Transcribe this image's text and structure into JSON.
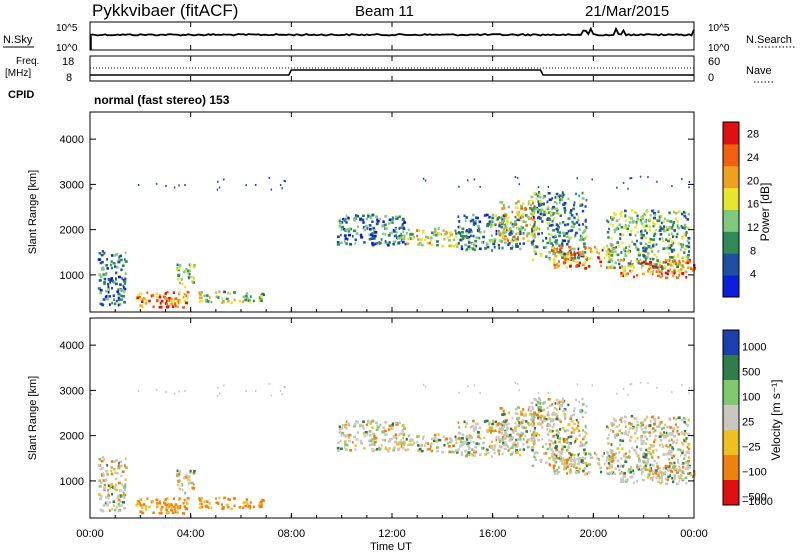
{
  "header": {
    "station": "Pykkvibaer (fitACF)",
    "beam": "Beam 11",
    "date": "21/Mar/2015"
  },
  "noise_panel": {
    "left_label": "N.Sky",
    "left_ticks": [
      "10^5",
      "10^0"
    ],
    "right_label": "N.Search",
    "right_ticks": [
      "10^5",
      "10^0"
    ]
  },
  "freq_panel": {
    "left_label_line1": "Freq.",
    "left_label_line2": "[MHz]",
    "left_ticks": [
      "18",
      "8"
    ],
    "right_label": "Nave",
    "right_ticks": [
      "60",
      "0"
    ],
    "cpid_label": "CPID",
    "cpid_text": "normal (fast stereo) 153"
  },
  "chart_data": [
    {
      "type": "heatmap",
      "name": "power",
      "ylabel": "Slant Range [km]",
      "ylim": [
        180,
        4600
      ],
      "yticks": [
        "1000",
        "2000",
        "3000",
        "4000"
      ],
      "ytick_values": [
        1000,
        2000,
        3000,
        4000
      ],
      "xlim": [
        0,
        24
      ],
      "colorbar": {
        "label": "Power [dB]",
        "ticks": [
          "4",
          "8",
          "12",
          "16",
          "20",
          "24",
          "28"
        ],
        "tick_values": [
          4,
          8,
          12,
          16,
          20,
          24,
          28
        ],
        "range": [
          0,
          30
        ],
        "colors": [
          "#0a1fdc",
          "#1e4fa0",
          "#2e8b57",
          "#7fc97f",
          "#e6e62e",
          "#f0a020",
          "#f06010",
          "#e01010"
        ]
      }
    },
    {
      "type": "heatmap",
      "name": "velocity",
      "ylabel": "Slant Range [km]",
      "ylim": [
        180,
        4600
      ],
      "yticks": [
        "1000",
        "2000",
        "3000",
        "4000"
      ],
      "ytick_values": [
        1000,
        2000,
        3000,
        4000
      ],
      "xlim": [
        0,
        24
      ],
      "colorbar": {
        "label": "Velocity [m s⁻¹]",
        "ticks": [
          "1000",
          "500",
          "100",
          "25",
          "−25",
          "−100",
          "−500",
          "−1000"
        ],
        "colors": [
          "#1a3fb0",
          "#2e7d4a",
          "#7fc96f",
          "#c8c8c0",
          "#f0c020",
          "#f08010",
          "#e01010"
        ]
      }
    }
  ],
  "xaxis": {
    "label": "Time UT",
    "ticks": [
      "00:00",
      "04:00",
      "08:00",
      "12:00",
      "16:00",
      "20:00",
      "00:00"
    ],
    "tick_values": [
      0,
      4,
      8,
      12,
      16,
      20,
      24
    ]
  },
  "echo_regions": [
    {
      "t0": 0.3,
      "t1": 1.4,
      "r0": 300,
      "r1": 1500,
      "p": 8
    },
    {
      "t0": 1.8,
      "t1": 3.9,
      "r0": 250,
      "r1": 600,
      "p": 22
    },
    {
      "t0": 2.6,
      "t1": 3.5,
      "r0": 250,
      "r1": 450,
      "p": 28
    },
    {
      "t0": 3.4,
      "t1": 4.1,
      "r0": 700,
      "r1": 1300,
      "p": 12
    },
    {
      "t0": 4.3,
      "t1": 6.9,
      "r0": 350,
      "r1": 600,
      "p": 14
    },
    {
      "t0": 9.8,
      "t1": 12.5,
      "r0": 1600,
      "r1": 2300,
      "p": 8
    },
    {
      "t0": 12.4,
      "t1": 14.6,
      "r0": 1600,
      "r1": 2000,
      "p": 16
    },
    {
      "t0": 14.6,
      "t1": 17.2,
      "r0": 1500,
      "r1": 2300,
      "p": 9
    },
    {
      "t0": 16.2,
      "t1": 17.7,
      "r0": 1700,
      "r1": 2600,
      "p": 18
    },
    {
      "t0": 17.5,
      "t1": 19.7,
      "r0": 1300,
      "r1": 2800,
      "p": 10
    },
    {
      "t0": 18.3,
      "t1": 20.8,
      "r0": 1100,
      "r1": 1600,
      "p": 22
    },
    {
      "t0": 20.5,
      "t1": 23.8,
      "r0": 1100,
      "r1": 2400,
      "p": 12
    },
    {
      "t0": 21.0,
      "t1": 24.0,
      "r0": 900,
      "r1": 1300,
      "p": 24
    }
  ]
}
